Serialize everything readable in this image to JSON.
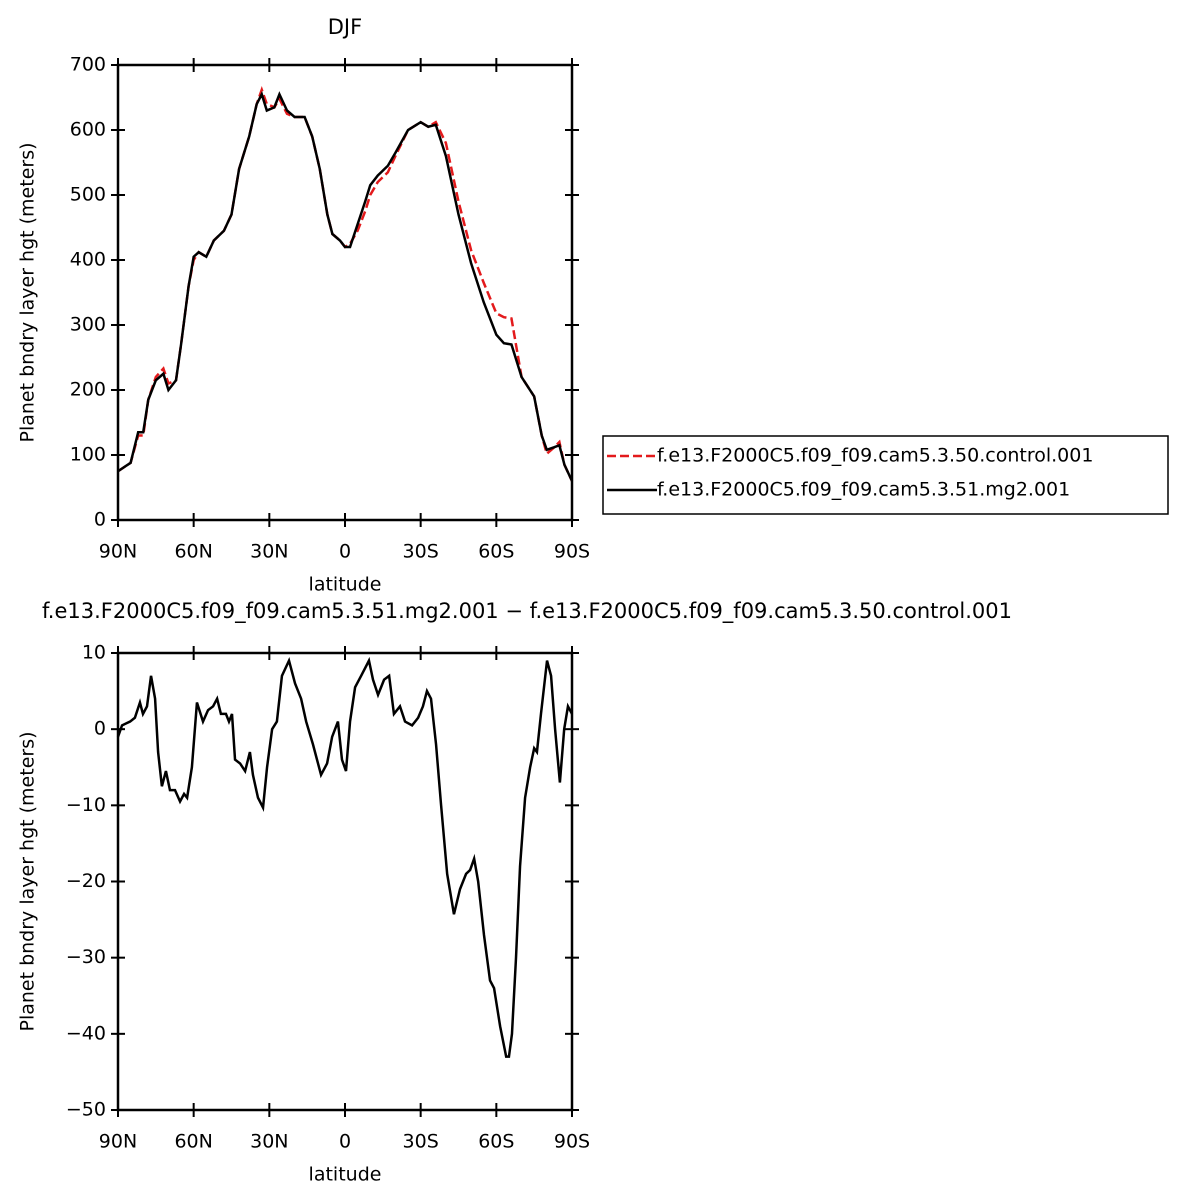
{
  "chart_data": [
    {
      "type": "line",
      "title": "DJF",
      "xlabel": "latitude",
      "ylabel": "Planet bndry layer hgt (meters)",
      "x": [
        90,
        85,
        82,
        80,
        78,
        75,
        72,
        70,
        67,
        65,
        62,
        60,
        58,
        55,
        52,
        48,
        45,
        42,
        38,
        35,
        33,
        31,
        28,
        26,
        23,
        20,
        16,
        13,
        10,
        7,
        5,
        2,
        0,
        -2,
        -5,
        -8,
        -10,
        -13,
        -17,
        -20,
        -25,
        -30,
        -33,
        -36,
        -40,
        -45,
        -50,
        -55,
        -60,
        -63,
        -66,
        -70,
        -75,
        -78,
        -80,
        -83,
        -85,
        -87,
        -90
      ],
      "series": [
        {
          "name": "f.e13.F2000C5.f09_f09.cam5.3.50.control.001",
          "color": "#e31a1c",
          "linestyle": "dashed",
          "values": [
            75,
            88,
            130,
            130,
            185,
            220,
            233,
            210,
            215,
            270,
            360,
            400,
            412,
            405,
            430,
            445,
            470,
            540,
            590,
            640,
            662,
            640,
            635,
            648,
            625,
            620,
            620,
            590,
            540,
            470,
            440,
            430,
            420,
            425,
            445,
            475,
            500,
            520,
            535,
            560,
            600,
            612,
            605,
            612,
            580,
            490,
            415,
            365,
            318,
            312,
            310,
            220,
            190,
            130,
            102,
            112,
            120,
            85,
            60
          ]
        },
        {
          "name": "f.e13.F2000C5.f09_f09.cam5.3.51.mg2.001",
          "color": "#000000",
          "linestyle": "solid",
          "values": [
            75,
            88,
            135,
            135,
            185,
            215,
            225,
            200,
            215,
            270,
            360,
            405,
            412,
            405,
            430,
            445,
            470,
            540,
            590,
            640,
            655,
            630,
            635,
            655,
            630,
            620,
            620,
            590,
            540,
            470,
            440,
            430,
            420,
            420,
            455,
            490,
            515,
            530,
            545,
            565,
            600,
            612,
            605,
            608,
            560,
            470,
            395,
            335,
            285,
            272,
            270,
            220,
            190,
            130,
            108,
            112,
            115,
            85,
            60
          ]
        }
      ],
      "xlim": [
        90,
        -90
      ],
      "xticks": [
        {
          "value": 90,
          "label": "90N"
        },
        {
          "value": 60,
          "label": "60N"
        },
        {
          "value": 30,
          "label": "30N"
        },
        0,
        {
          "value": -30,
          "label": "30S"
        },
        {
          "value": -60,
          "label": "60S"
        },
        {
          "value": -90,
          "label": "90S"
        }
      ],
      "ylim": [
        0,
        700
      ],
      "yticks": [
        0,
        100,
        200,
        300,
        400,
        500,
        600,
        700
      ],
      "legend": "right"
    },
    {
      "type": "line",
      "title": "f.e13.F2000C5.f09_f09.cam5.3.51.mg2.001 − f.e13.F2000C5.f09_f09.cam5.3.50.control.001",
      "xlabel": "latitude",
      "ylabel": "Planet bndry layer hgt (meters)",
      "x": [
        90,
        88.4,
        85.2,
        83.3,
        81.3,
        80.1,
        78.5,
        76.9,
        75.3,
        74.1,
        72.6,
        71,
        69.4,
        67.4,
        65.4,
        63.8,
        62.6,
        60.7,
        58.7,
        56.3,
        54.3,
        52.3,
        50.7,
        49.2,
        47.2,
        46,
        44.8,
        43.6,
        41.6,
        39.6,
        37.7,
        36.5,
        34.5,
        32.5,
        30.9,
        28.9,
        27,
        25,
        22.2,
        19.8,
        17.4,
        15.4,
        12.7,
        9.5,
        7.1,
        5.1,
        2.8,
        1.2,
        -0.4,
        -2,
        -4,
        -6.4,
        -9.5,
        -11.1,
        -13.1,
        -15.5,
        -17.5,
        -19.4,
        -21.8,
        -23.8,
        -26.6,
        -29,
        -30.9,
        -32.5,
        -34.1,
        -36.1,
        -38.1,
        -40.5,
        -43.2,
        -45.6,
        -48,
        -49.6,
        -51.2,
        -52.8,
        -55.1,
        -57.5,
        -59.1,
        -61.5,
        -63.9,
        -65,
        -66.2,
        -67.8,
        -69.4,
        -71.4,
        -73.4,
        -75,
        -76.1,
        -77.7,
        -80.1,
        -81.7,
        -83.3,
        -85.2,
        -86.9,
        -88.4,
        -90
      ],
      "color": "#000000",
      "values": [
        -1,
        0.5,
        1,
        1.5,
        3.5,
        2,
        3,
        7,
        4,
        -3,
        -7.5,
        -5.5,
        -8,
        -8,
        -9.5,
        -8.5,
        -9,
        -5,
        3.5,
        1,
        2.5,
        3,
        4,
        2,
        2,
        1,
        2,
        -4,
        -4.5,
        -5.5,
        -3,
        -6,
        -9,
        -10.3,
        -5,
        0,
        1,
        7,
        9,
        6,
        4,
        1,
        -2,
        -6,
        -4.5,
        -1,
        1,
        -4,
        -5.5,
        1,
        5.5,
        7,
        9,
        6.5,
        4.5,
        6.5,
        7,
        2,
        3,
        1,
        0.5,
        1.5,
        3,
        5,
        4,
        -2,
        -10,
        -19,
        -24.3,
        -21,
        -19,
        -18.5,
        -17,
        -20,
        -27,
        -33,
        -34,
        -39,
        -43,
        -43,
        -40,
        -30,
        -18,
        -9,
        -5,
        -2.5,
        -3,
        2,
        9,
        7,
        0,
        -7,
        0,
        3,
        2
      ],
      "xlim": [
        90,
        -90
      ],
      "xticks": [
        {
          "value": 90,
          "label": "90N"
        },
        {
          "value": 60,
          "label": "60N"
        },
        {
          "value": 30,
          "label": "30N"
        },
        0,
        {
          "value": -30,
          "label": "30S"
        },
        {
          "value": -60,
          "label": "60S"
        },
        {
          "value": -90,
          "label": "90S"
        }
      ],
      "ylim": [
        -50,
        10
      ],
      "yticks": [
        {
          "value": -50,
          "label": "−50"
        },
        {
          "value": -40,
          "label": "−40"
        },
        {
          "value": -30,
          "label": "−30"
        },
        {
          "value": -20,
          "label": "−20"
        },
        {
          "value": -10,
          "label": "−10"
        },
        0,
        10
      ]
    }
  ]
}
